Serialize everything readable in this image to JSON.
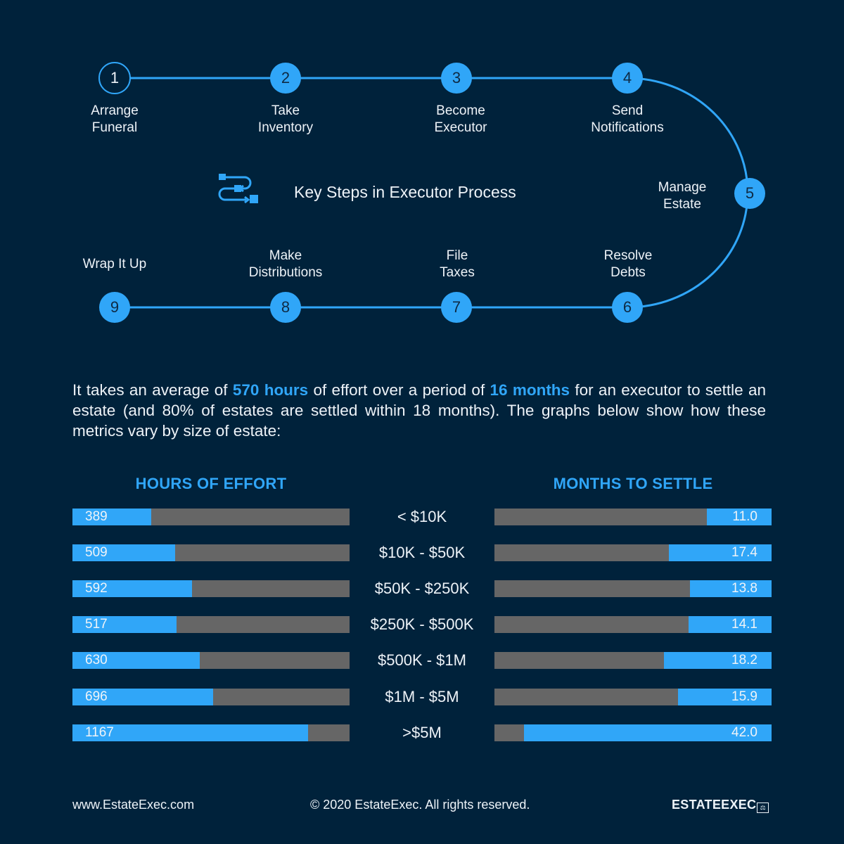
{
  "process": {
    "title": "Key Steps in Executor Process",
    "icon": "process-flow-icon",
    "steps": [
      {
        "num": "1",
        "line1": "Arrange",
        "line2": "Funeral"
      },
      {
        "num": "2",
        "line1": "Take",
        "line2": "Inventory"
      },
      {
        "num": "3",
        "line1": "Become",
        "line2": "Executor"
      },
      {
        "num": "4",
        "line1": "Send",
        "line2": "Notifications"
      },
      {
        "num": "5",
        "line1": "Manage",
        "line2": "Estate"
      },
      {
        "num": "6",
        "line1": "Resolve",
        "line2": "Debts"
      },
      {
        "num": "7",
        "line1": "File",
        "line2": "Taxes"
      },
      {
        "num": "8",
        "line1": "Make",
        "line2": "Distributions"
      },
      {
        "num": "9",
        "line1": "Wrap It Up",
        "line2": ""
      }
    ]
  },
  "intro": {
    "part1": "It takes an average of ",
    "hl1": "570 hours",
    "part2": " of effort over a period of ",
    "hl2": "16 months",
    "part3": " for an executor to settle an estate (and 80% of estates are settled within 18 months). The graphs below show how these metrics vary by size of estate:"
  },
  "colors": {
    "accent": "#30a6f8",
    "background": "#00223b",
    "bar_track": "#666666"
  },
  "chart_data": [
    {
      "type": "bar",
      "title": "HOURS OF EFFORT",
      "orientation": "horizontal",
      "categories": [
        "< $10K",
        "$10K - $50K",
        "$50K - $250K",
        "$250K - $500K",
        "$500K - $1M",
        "$1M - $5M",
        ">$5M"
      ],
      "values": [
        389,
        509,
        592,
        517,
        630,
        696,
        1167
      ],
      "labels": [
        "389",
        "509",
        "592",
        "517",
        "630",
        "696",
        "1167"
      ],
      "xlim": [
        0,
        1372
      ],
      "grid": false
    },
    {
      "type": "bar",
      "title": "MONTHS TO SETTLE",
      "orientation": "horizontal-right-aligned",
      "categories": [
        "< $10K",
        "$10K - $50K",
        "$50K - $250K",
        "$250K - $500K",
        "$500K - $1M",
        "$1M - $5M",
        ">$5M"
      ],
      "values": [
        11.0,
        17.4,
        13.8,
        14.1,
        18.2,
        15.9,
        42.0
      ],
      "labels": [
        "11.0",
        "17.4",
        "13.8",
        "14.1",
        "18.2",
        "15.9",
        "42.0"
      ],
      "xlim": [
        0,
        47
      ],
      "grid": false
    }
  ],
  "footer": {
    "url": "www.EstateExec.com",
    "copyright": "© 2020 EstateExec.  All rights reserved.",
    "brand": "ESTATEEXEC",
    "brand_icon": "scales-monitor-icon"
  }
}
